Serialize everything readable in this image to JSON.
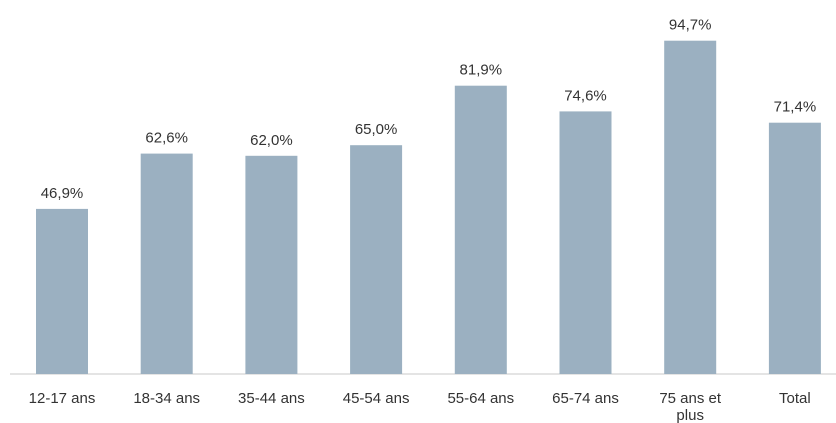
{
  "chart_data": {
    "type": "bar",
    "title": "",
    "xlabel": "",
    "ylabel": "",
    "categories": [
      [
        "12-17 ans"
      ],
      [
        "18-34 ans"
      ],
      [
        "35-44 ans"
      ],
      [
        "45-54 ans"
      ],
      [
        "55-64 ans"
      ],
      [
        "65-74 ans"
      ],
      [
        "75 ans et",
        "plus"
      ],
      [
        "Total"
      ]
    ],
    "values": [
      46.9,
      62.6,
      62.0,
      65.0,
      81.9,
      74.6,
      94.7,
      71.4
    ],
    "value_labels": [
      "46,9%",
      "62,6%",
      "62,0%",
      "65,0%",
      "81,9%",
      "74,6%",
      "94,7%",
      "71,4%"
    ],
    "ylim": [
      0,
      100
    ],
    "grid": false,
    "legend": "none",
    "colors": {
      "bar": "#9bb0c1",
      "axis": "#c8c8c8",
      "text": "#333333"
    }
  }
}
